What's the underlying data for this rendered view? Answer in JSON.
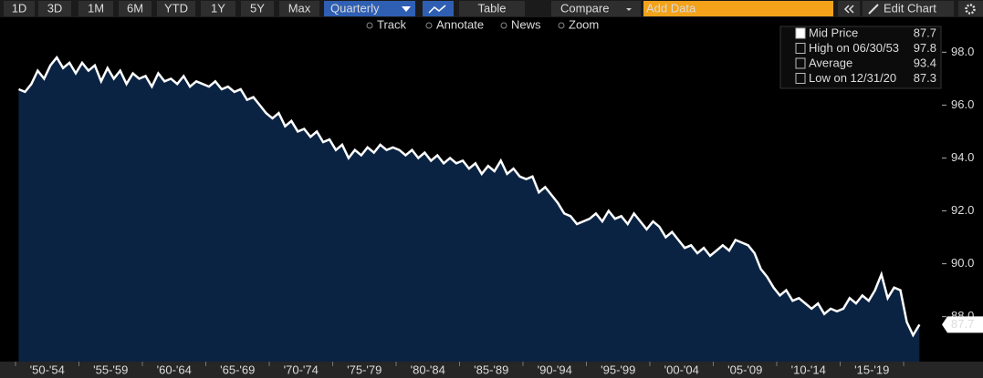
{
  "toolbar": {
    "ranges": [
      "1D",
      "3D",
      "1M",
      "6M",
      "YTD",
      "1Y",
      "5Y",
      "Max"
    ],
    "frequency": "Quarterly",
    "view": "Table",
    "compare": "Compare",
    "input_placeholder": "Add Data",
    "edit": "Edit Chart"
  },
  "tools": [
    "Track",
    "Annotate",
    "News",
    "Zoom"
  ],
  "legend": {
    "items": [
      {
        "label": "Mid Price",
        "value": 87.7
      },
      {
        "label": "High on 06/30/53",
        "value": 97.8
      },
      {
        "label": "Average",
        "value": 93.4
      },
      {
        "label": "Low on 12/31/20",
        "value": 87.3
      }
    ]
  },
  "chart_data": {
    "type": "area",
    "color": "#ffffff",
    "fill": "#0b2342",
    "categories": [
      "'50-'54",
      "'55-'59",
      "'60-'64",
      "'65-'69",
      "'70-'74",
      "'75-'79",
      "'80-'84",
      "'85-'89",
      "'90-'94",
      "'95-'99",
      "'00-'04",
      "'05-'09",
      "'10-'14",
      "'15-'19",
      null
    ],
    "values": [
      [
        96.6,
        96.5,
        96.8,
        97.3,
        97.0,
        97.5,
        97.8,
        97.4,
        97.6,
        97.2
      ],
      [
        97.6,
        97.3,
        97.5,
        96.9,
        97.4,
        97.0,
        97.3,
        96.8,
        97.2,
        97.0
      ],
      [
        97.1,
        96.7,
        97.2,
        96.9,
        97.0,
        96.8,
        97.1,
        96.7,
        96.9,
        96.8
      ],
      [
        96.7,
        96.9,
        96.6,
        96.7,
        96.5,
        96.6,
        96.2,
        96.3,
        96.0,
        95.7
      ],
      [
        95.5,
        95.7,
        95.2,
        95.4,
        95.0,
        95.1,
        94.8,
        95.0,
        94.6,
        94.7
      ],
      [
        94.3,
        94.5,
        94.0,
        94.3,
        94.1,
        94.4,
        94.2,
        94.5,
        94.3,
        94.4
      ],
      [
        94.3,
        94.1,
        94.3,
        94.0,
        94.2,
        93.9,
        94.1,
        93.8,
        94.0,
        93.8
      ],
      [
        93.9,
        93.6,
        93.8,
        93.4,
        93.7,
        93.5,
        93.9,
        93.4,
        93.6,
        93.3
      ],
      [
        93.2,
        93.3,
        92.7,
        92.9,
        92.6,
        92.3,
        91.9,
        91.8,
        91.5,
        91.6
      ],
      [
        91.7,
        91.9,
        91.6,
        92.0,
        91.7,
        91.8,
        91.5,
        91.9,
        91.6,
        91.3
      ],
      [
        91.6,
        91.4,
        91.0,
        91.2,
        90.9,
        90.6,
        90.7,
        90.4,
        90.6,
        90.3
      ],
      [
        90.5,
        90.7,
        90.5,
        90.9,
        90.8,
        90.7,
        90.4,
        89.8,
        89.5,
        89.1
      ],
      [
        88.8,
        89.0,
        88.6,
        88.7,
        88.5,
        88.3,
        88.5,
        88.1,
        88.3,
        88.2
      ],
      [
        88.3,
        88.7,
        88.5,
        88.8,
        88.6,
        89.0,
        89.6,
        88.7,
        89.1,
        89.0
      ],
      [
        87.8,
        87.3,
        87.7
      ]
    ],
    "ylim": [
      86.3,
      98.7
    ],
    "yticks": [
      {
        "value": 88,
        "label": "88.0"
      },
      {
        "value": 90,
        "label": "90.0"
      },
      {
        "value": 92,
        "label": "92.0"
      },
      {
        "value": 94,
        "label": "94.0"
      },
      {
        "value": 96,
        "label": "96.0"
      },
      {
        "value": 98,
        "label": "98.0"
      }
    ],
    "grid": false
  }
}
